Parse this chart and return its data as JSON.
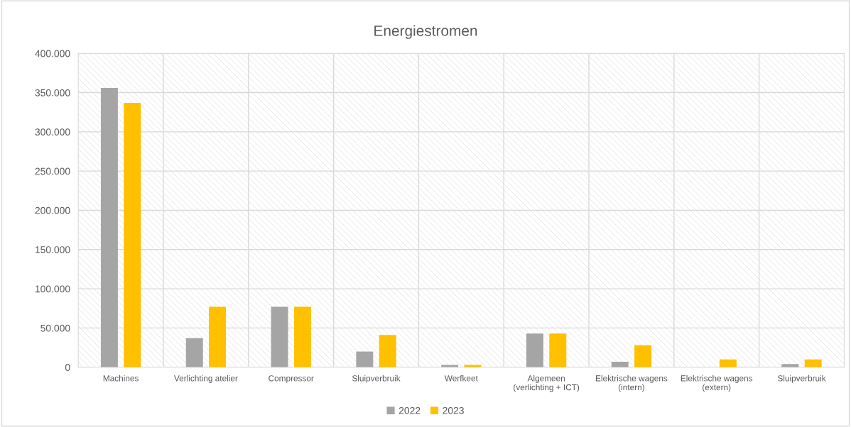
{
  "chart_data": {
    "type": "bar",
    "title": "Energiestromen",
    "categories": [
      "Machines",
      "Verlichting atelier",
      "Compressor",
      "Sluipverbruik",
      "Werfkeet",
      "Algemeen\n(verlichting + ICT)",
      "Elektrische wagens\n(intern)",
      "Elektrische wagens\n(extern)",
      "Sluipverbruik"
    ],
    "series": [
      {
        "name": "2022",
        "color": "#a5a5a5",
        "values": [
          356000,
          37000,
          77000,
          20000,
          3000,
          43000,
          7000,
          0,
          4000
        ]
      },
      {
        "name": "2023",
        "color": "#ffc000",
        "values": [
          337000,
          77000,
          77000,
          41000,
          3000,
          43000,
          28000,
          10000,
          10000
        ]
      }
    ],
    "ylim": [
      0,
      400000
    ],
    "yticks": [
      {
        "value": 0,
        "label": "0"
      },
      {
        "value": 50000,
        "label": "50.000"
      },
      {
        "value": 100000,
        "label": "100.000"
      },
      {
        "value": 150000,
        "label": "150.000"
      },
      {
        "value": 200000,
        "label": "200.000"
      },
      {
        "value": 250000,
        "label": "250.000"
      },
      {
        "value": 300000,
        "label": "300.000"
      },
      {
        "value": 350000,
        "label": "350.000"
      },
      {
        "value": 400000,
        "label": "400.000"
      }
    ],
    "grid": true,
    "legend": "bottom"
  }
}
